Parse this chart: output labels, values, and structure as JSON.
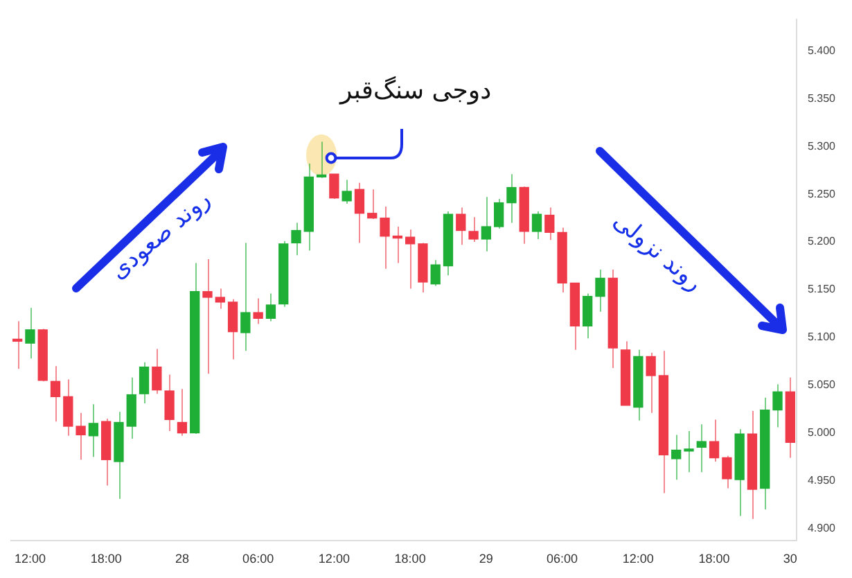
{
  "chart_data": {
    "type": "candlestick",
    "categories": [
      null,
      "12:00",
      null,
      null,
      null,
      null,
      null,
      "18:00",
      null,
      null,
      null,
      null,
      null,
      "28",
      null,
      null,
      null,
      null,
      null,
      "06:00",
      null,
      null,
      null,
      null,
      null,
      "12:00",
      null,
      null,
      null,
      null,
      null,
      "18:00",
      null,
      null,
      null,
      null,
      null,
      "29",
      null,
      null,
      null,
      null,
      null,
      "06:00",
      null,
      null,
      null,
      null,
      null,
      "12:00",
      null,
      null,
      null,
      null,
      null,
      "18:00",
      null,
      null,
      null,
      null,
      null,
      "30"
    ],
    "ohlc": [
      [
        5.098,
        5.117,
        5.067,
        5.096
      ],
      [
        5.094,
        5.131,
        5.078,
        5.108
      ],
      [
        5.108,
        5.109,
        5.054,
        5.055
      ],
      [
        5.054,
        5.07,
        5.012,
        5.038
      ],
      [
        5.038,
        5.056,
        4.997,
        5.007
      ],
      [
        5.007,
        5.021,
        4.972,
        4.998
      ],
      [
        4.997,
        5.03,
        4.975,
        5.01
      ],
      [
        5.012,
        5.015,
        4.945,
        4.972
      ],
      [
        4.97,
        5.022,
        4.931,
        5.011
      ],
      [
        5.007,
        5.058,
        4.994,
        5.04
      ],
      [
        5.041,
        5.074,
        5.031,
        5.069
      ],
      [
        5.069,
        5.088,
        5.041,
        5.045
      ],
      [
        5.044,
        5.061,
        5.002,
        5.014
      ],
      [
        5.011,
        5.046,
        4.997,
        5.0
      ],
      [
        5.0,
        5.178,
        4.999,
        5.148
      ],
      [
        5.148,
        5.182,
        5.062,
        5.142
      ],
      [
        5.142,
        5.151,
        5.13,
        5.137
      ],
      [
        5.137,
        5.14,
        5.077,
        5.106
      ],
      [
        5.105,
        5.199,
        5.086,
        5.126
      ],
      [
        5.126,
        5.141,
        5.114,
        5.12
      ],
      [
        5.12,
        5.146,
        5.117,
        5.134
      ],
      [
        5.135,
        5.201,
        5.132,
        5.198
      ],
      [
        5.199,
        5.22,
        5.186,
        5.212
      ],
      [
        5.211,
        5.282,
        5.191,
        5.268
      ],
      [
        5.268,
        5.305,
        5.267,
        5.269
      ],
      [
        5.271,
        5.271,
        5.245,
        5.246
      ],
      [
        5.243,
        5.265,
        5.24,
        5.253
      ],
      [
        5.255,
        5.262,
        5.199,
        5.23
      ],
      [
        5.23,
        5.255,
        5.224,
        5.225
      ],
      [
        5.225,
        5.237,
        5.172,
        5.206
      ],
      [
        5.206,
        5.216,
        5.178,
        5.204
      ],
      [
        5.205,
        5.213,
        5.151,
        5.198
      ],
      [
        5.198,
        5.199,
        5.147,
        5.158
      ],
      [
        5.156,
        5.181,
        5.154,
        5.176
      ],
      [
        5.175,
        5.232,
        5.165,
        5.229
      ],
      [
        5.229,
        5.236,
        5.197,
        5.212
      ],
      [
        5.211,
        5.226,
        5.2,
        5.203
      ],
      [
        5.203,
        5.247,
        5.19,
        5.216
      ],
      [
        5.216,
        5.245,
        5.214,
        5.241
      ],
      [
        5.241,
        5.271,
        5.22,
        5.257
      ],
      [
        5.257,
        5.258,
        5.198,
        5.211
      ],
      [
        5.211,
        5.232,
        5.203,
        5.229
      ],
      [
        5.228,
        5.236,
        5.202,
        5.21
      ],
      [
        5.21,
        5.215,
        5.147,
        5.157
      ],
      [
        5.157,
        5.157,
        5.087,
        5.112
      ],
      [
        5.112,
        5.146,
        5.099,
        5.143
      ],
      [
        5.143,
        5.171,
        5.127,
        5.162
      ],
      [
        5.162,
        5.171,
        5.068,
        5.089
      ],
      [
        5.087,
        5.096,
        5.029,
        5.029
      ],
      [
        5.027,
        5.087,
        5.013,
        5.08
      ],
      [
        5.08,
        5.084,
        5.021,
        5.06
      ],
      [
        5.06,
        5.086,
        4.937,
        4.977
      ],
      [
        4.973,
        4.998,
        4.951,
        4.982
      ],
      [
        4.981,
        5.002,
        4.959,
        4.982
      ],
      [
        4.985,
        5.009,
        4.959,
        4.991
      ],
      [
        4.991,
        5.014,
        4.97,
        4.974
      ],
      [
        4.974,
        4.976,
        4.942,
        4.952
      ],
      [
        4.951,
        5.004,
        4.913,
        4.999
      ],
      [
        4.999,
        5.023,
        4.91,
        4.941
      ],
      [
        4.942,
        5.037,
        4.92,
        5.024
      ],
      [
        5.024,
        5.051,
        5.006,
        5.043
      ],
      [
        5.043,
        5.058,
        4.974,
        4.99
      ]
    ],
    "colors": [
      "#ef3a4a",
      "#1fae36",
      "#ef3a4a",
      "#ef3a4a",
      "#ef3a4a",
      "#ef3a4a",
      "#1fae36",
      "#ef3a4a",
      "#1fae36",
      "#1fae36",
      "#1fae36",
      "#ef3a4a",
      "#ef3a4a",
      "#ef3a4a",
      "#1fae36",
      "#ef3a4a",
      "#ef3a4a",
      "#ef3a4a",
      "#1fae36",
      "#ef3a4a",
      "#1fae36",
      "#1fae36",
      "#1fae36",
      "#1fae36",
      "#1fae36",
      "#ef3a4a",
      "#1fae36",
      "#ef3a4a",
      "#ef3a4a",
      "#ef3a4a",
      "#ef3a4a",
      "#ef3a4a",
      "#ef3a4a",
      "#1fae36",
      "#1fae36",
      "#ef3a4a",
      "#ef3a4a",
      "#1fae36",
      "#1fae36",
      "#1fae36",
      "#ef3a4a",
      "#1fae36",
      "#ef3a4a",
      "#ef3a4a",
      "#ef3a4a",
      "#1fae36",
      "#1fae36",
      "#ef3a4a",
      "#ef3a4a",
      "#1fae36",
      "#ef3a4a",
      "#ef3a4a",
      "#1fae36",
      "#1fae36",
      "#1fae36",
      "#ef3a4a",
      "#ef3a4a",
      "#1fae36",
      "#ef3a4a",
      "#1fae36",
      "#1fae36",
      "#ef3a4a"
    ],
    "ylim": [
      4.887,
      5.433
    ],
    "yticks": [
      {
        "value": 4.9,
        "label": "4.900"
      },
      {
        "value": 4.95,
        "label": "4.950"
      },
      {
        "value": 5.0,
        "label": "5.000"
      },
      {
        "value": 5.05,
        "label": "5.050"
      },
      {
        "value": 5.1,
        "label": "5.100"
      },
      {
        "value": 5.15,
        "label": "5.150"
      },
      {
        "value": 5.2,
        "label": "5.200"
      },
      {
        "value": 5.25,
        "label": "5.250"
      },
      {
        "value": 5.3,
        "label": "5.300"
      },
      {
        "value": 5.35,
        "label": "5.350"
      },
      {
        "value": 5.4,
        "label": "5.400"
      }
    ],
    "grid": false,
    "legend": false,
    "annotations": [
      "دوجی سنگ‌قبر",
      "روند صعودی",
      "روند نزولی"
    ]
  }
}
